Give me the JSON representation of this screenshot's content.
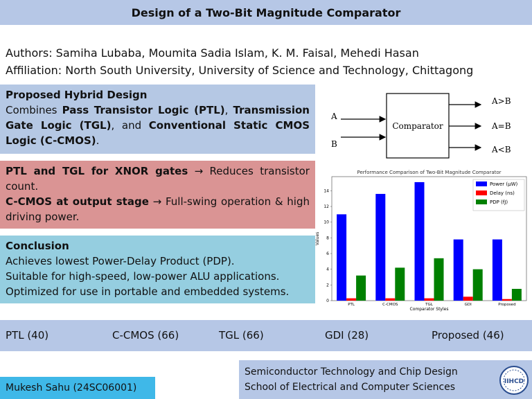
{
  "header": {
    "title": "Design of a Two-Bit Magnitude Comparator"
  },
  "authors": {
    "authors_line": "Authors: Samiha Lubaba, Moumita Sadia Islam, K. M. Faisal, Mehedi Hasan",
    "affiliation_line": "Affiliation: North South University, University of Science and Technology, Chittagong"
  },
  "design_box": {
    "heading": "Proposed Hybrid Design",
    "t1": "Combines ",
    "b1": "Pass Transistor Logic (PTL)",
    "t2": ", ",
    "b2": "Transmission Gate Logic (TGL)",
    "t3": ", and ",
    "b3": "Conventional Static CMOS Logic (C-CMOS)",
    "t4": "."
  },
  "logic_box": {
    "line1_bold": "PTL and TGL for XNOR gates",
    "line1_rest": " → Reduces transistor count.",
    "line2_bold": "C-CMOS at output stage",
    "line2_rest": " → Full-swing operation & high driving power."
  },
  "conclusion_box": {
    "heading": "Conclusion",
    "items": [
      "Achieves lowest Power-Delay Product (PDP).",
      "Suitable for high-speed, low-power ALU applications.",
      "Optimized for use in portable and embedded systems."
    ]
  },
  "diagram": {
    "block_label": "Comparator",
    "inputs": [
      "A",
      "B"
    ],
    "outputs": [
      "A>B",
      "A=B",
      "A<B"
    ]
  },
  "chart_data": {
    "type": "bar",
    "title": "Performance Comparison of Two-Bit Magnitude Comparator",
    "xlabel": "Comparator Styles",
    "ylabel": "Values",
    "categories": [
      "PTL",
      "C-CMOS",
      "TGL",
      "GDI",
      "Proposed"
    ],
    "yticks": [
      0,
      2,
      4,
      6,
      8,
      10,
      12,
      14
    ],
    "ylim": [
      0,
      15.8
    ],
    "series": [
      {
        "name": "Power (μW)",
        "color": "#0000ff",
        "values": [
          11.0,
          13.6,
          15.1,
          7.8,
          7.8
        ]
      },
      {
        "name": "Delay (ns)",
        "color": "#ff0000",
        "values": [
          0.3,
          0.3,
          0.3,
          0.5,
          0.2
        ]
      },
      {
        "name": "PDP (fJ)",
        "color": "#008000",
        "values": [
          3.2,
          4.2,
          5.4,
          4.0,
          1.5
        ]
      }
    ],
    "legend": "top-right"
  },
  "transistor_counts": [
    "PTL (40)",
    "C-CMOS (66)",
    "TGL (66)",
    "GDI (28)",
    "Proposed (46)"
  ],
  "footer": {
    "name": "Mukesh Sahu (24SC06001)",
    "dept_line1": "Semiconductor Technology and Chip Design",
    "dept_line2": "School of Electrical and Computer Sciences",
    "logo_text": "IIHCD",
    "logo_icon": "institute-logo-icon"
  }
}
